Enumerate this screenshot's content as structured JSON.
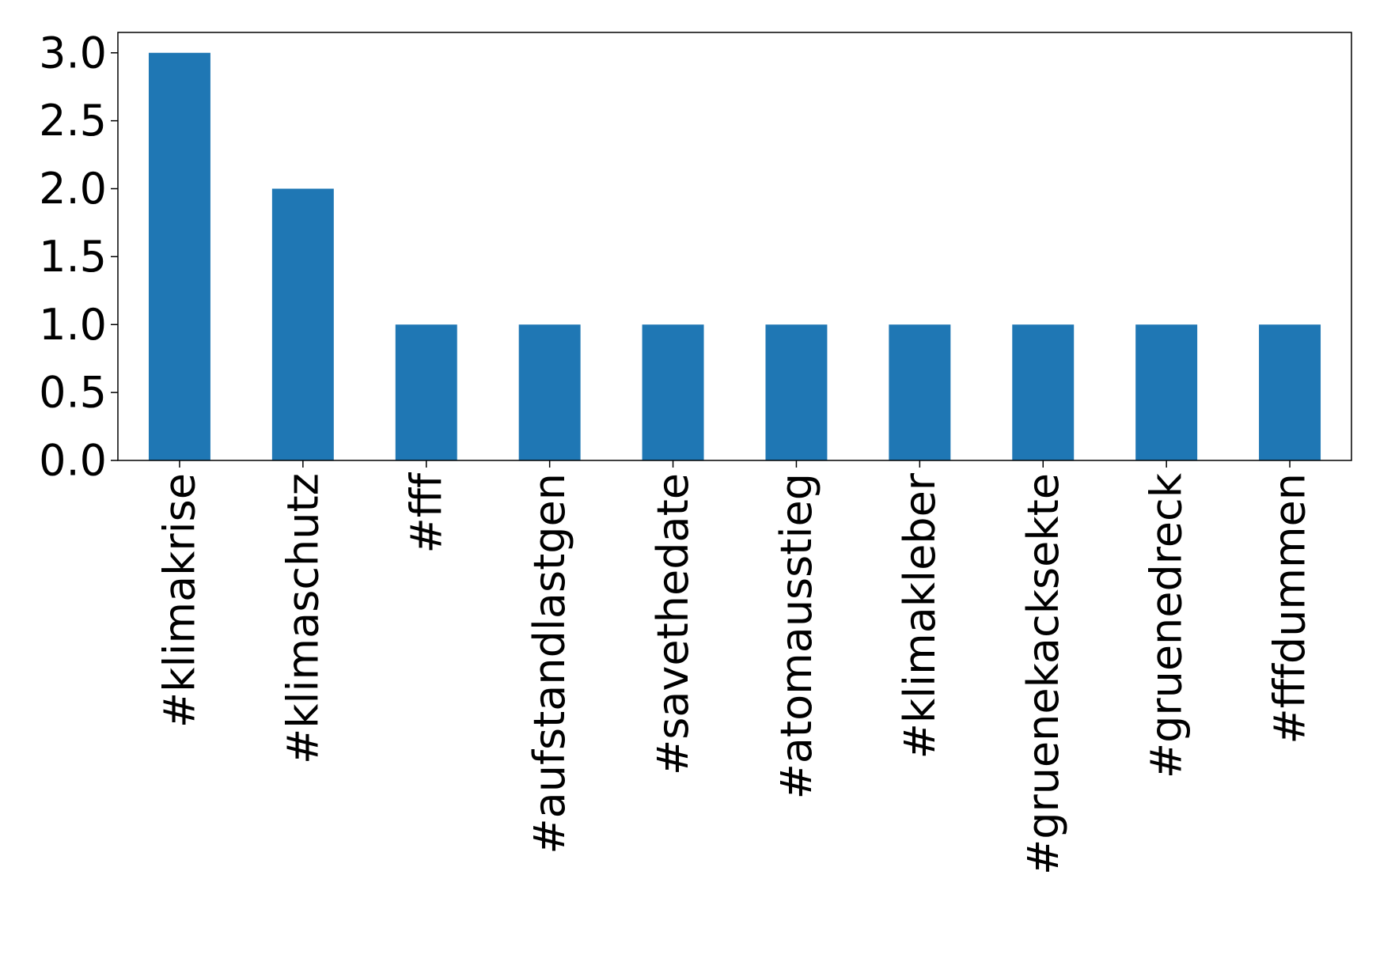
{
  "chart_data": {
    "type": "bar",
    "categories": [
      "#klimakrise",
      "#klimaschutz",
      "#fff",
      "#aufstandlastgen",
      "#savethedate",
      "#atomausstieg",
      "#klimakleber",
      "#gruenekacksekte",
      "#gruenedreck",
      "#fffdummen"
    ],
    "values": [
      3,
      2,
      1,
      1,
      1,
      1,
      1,
      1,
      1,
      1
    ],
    "color": "#1f77b4",
    "ylim": [
      0,
      3.15
    ],
    "yticks": [
      {
        "value": 0,
        "label": "0.0"
      },
      {
        "value": 0.5,
        "label": "0.5"
      },
      {
        "value": 1,
        "label": "1.0"
      },
      {
        "value": 1.5,
        "label": "1.5"
      },
      {
        "value": 2,
        "label": "2.0"
      },
      {
        "value": 2.5,
        "label": "2.5"
      },
      {
        "value": 3,
        "label": "3.0"
      }
    ],
    "grid": false
  }
}
